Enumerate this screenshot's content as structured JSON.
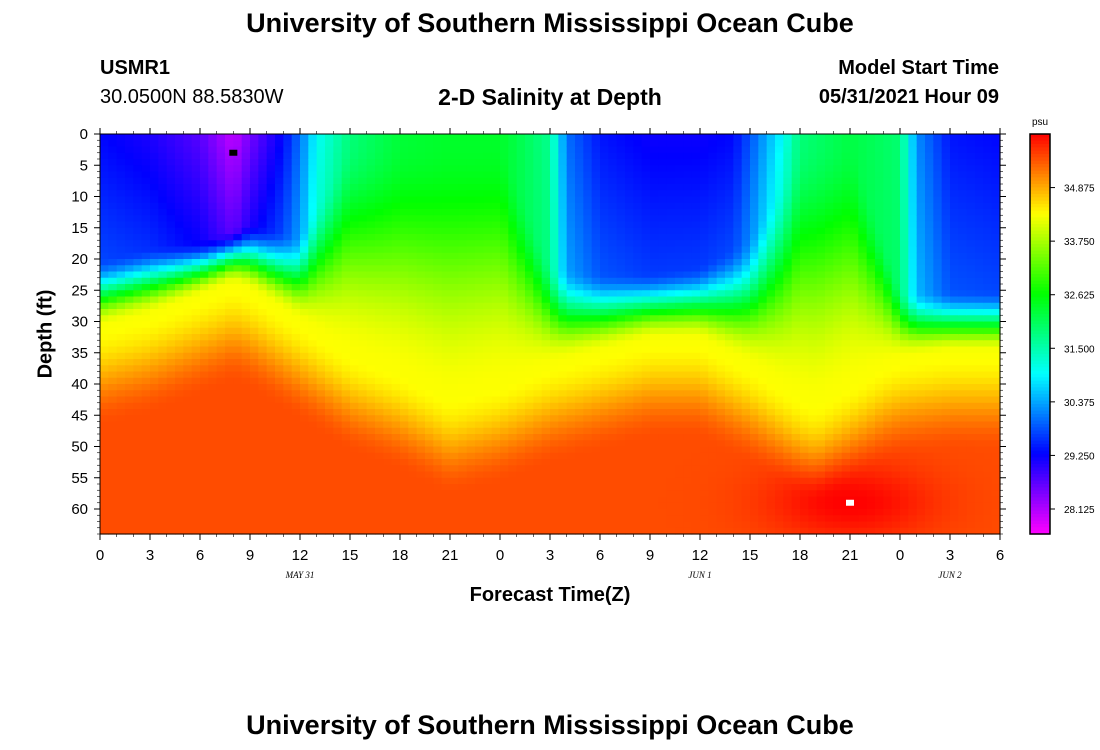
{
  "page": {
    "top_title": "University of Southern Mississippi Ocean Cube",
    "bottom_title": "University of Southern Mississippi Ocean Cube",
    "station_id": "USMR1",
    "station_coords": "30.0500N  88.5830W",
    "plot_title": "2-D Salinity at Depth",
    "model_label": "Model Start Time",
    "model_start": "05/31/2021 Hour 09"
  },
  "chart_data": {
    "type": "heatmap",
    "title": "2-D Salinity at Depth",
    "xlabel": "Forecast Time(Z)",
    "ylabel": "Depth (ft)",
    "x_range_hours": [
      0,
      54
    ],
    "y_range_ft": [
      0,
      64
    ],
    "x_tick_labels": [
      "0",
      "3",
      "6",
      "9",
      "12",
      "15",
      "18",
      "21",
      "0",
      "3",
      "6",
      "9",
      "12",
      "15",
      "18",
      "21",
      "0",
      "3",
      "6"
    ],
    "y_tick_labels": [
      "0",
      "5",
      "10",
      "15",
      "20",
      "25",
      "30",
      "35",
      "40",
      "45",
      "50",
      "55",
      "60"
    ],
    "date_labels": [
      {
        "text": "MAY 31",
        "hour": 12
      },
      {
        "text": "JUN 1",
        "hour": 36
      },
      {
        "text": "JUN 2",
        "hour": 51
      }
    ],
    "colorbar": {
      "unit": "psu",
      "range": [
        27.6,
        36.0
      ],
      "tick_labels": [
        "28.125",
        "29.250",
        "30.375",
        "31.500",
        "32.625",
        "33.750",
        "34.875"
      ],
      "tick_values": [
        28.125,
        29.25,
        30.375,
        31.5,
        32.625,
        33.75,
        34.875
      ]
    },
    "markers": [
      {
        "name": "min-marker",
        "hour": 8,
        "depth_ft": 3,
        "color": "#000000"
      },
      {
        "name": "max-marker",
        "hour": 45,
        "depth_ft": 59,
        "color": "#ffffff"
      }
    ],
    "surface_salinity_psu": {
      "hours": [
        0,
        3,
        6,
        8,
        9,
        11,
        12,
        13,
        15,
        18,
        21,
        24,
        27,
        28,
        30,
        33,
        36,
        38,
        39,
        41,
        42,
        45,
        48,
        49,
        51,
        54
      ],
      "values": [
        29.3,
        29.1,
        28.7,
        28.0,
        28.5,
        29.3,
        30.0,
        31.0,
        31.8,
        32.3,
        32.4,
        32.4,
        31.7,
        30.0,
        29.4,
        29.2,
        29.2,
        29.3,
        29.8,
        31.0,
        31.8,
        32.2,
        31.9,
        30.2,
        29.4,
        29.3
      ]
    },
    "fresh_layer_depth_ft": {
      "hours": [
        0,
        3,
        6,
        9,
        12,
        15,
        18,
        21,
        24,
        27,
        30,
        33,
        36,
        39,
        42,
        45,
        48,
        51,
        54
      ],
      "values": [
        20,
        18,
        17,
        14,
        16,
        0,
        0,
        0,
        0,
        21,
        22,
        22,
        21,
        16,
        0,
        0,
        25,
        25,
        25
      ]
    },
    "halocline_depth_ft": {
      "hours": [
        0,
        3,
        6,
        8,
        9,
        12,
        15,
        18,
        21,
        24,
        27,
        30,
        33,
        36,
        39,
        42,
        43,
        45,
        47,
        48,
        51,
        54
      ],
      "values": [
        31,
        29,
        26,
        24,
        25,
        30,
        35,
        38,
        42,
        40,
        37,
        35,
        33,
        33,
        37,
        42,
        43,
        40,
        37,
        36,
        35,
        35
      ]
    },
    "deep_salinity_psu": 35.5,
    "max_salinity_psu": 36.0
  }
}
